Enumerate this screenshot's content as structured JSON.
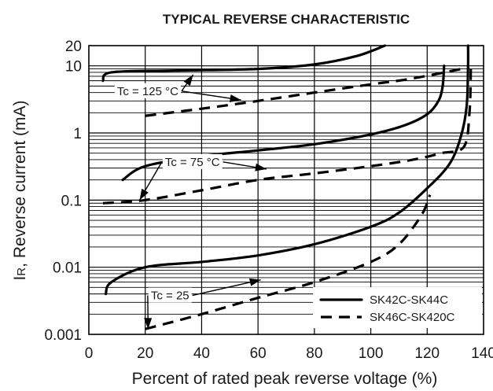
{
  "chart_data": {
    "type": "line",
    "title": "TYPICAL REVERSE CHARACTERISTIC",
    "xlabel": "Percent of rated peak reverse voltage (%)",
    "ylabel": "IR, Reverse current (mA)",
    "ylabel_main": "I",
    "ylabel_sub": "R",
    "ylabel_rest": ", Reverse current (mA)",
    "xlim": [
      0,
      140
    ],
    "ylim": [
      0.001,
      20
    ],
    "yscale": "log",
    "grid": true,
    "x_ticks": [
      0,
      20,
      40,
      60,
      80,
      100,
      120,
      140
    ],
    "x_tick_labels": [
      "0",
      "20",
      "40",
      "60",
      "80",
      "100",
      "120",
      "140"
    ],
    "y_ticks": [
      0.001,
      0.01,
      0.1,
      1,
      10,
      20
    ],
    "y_tick_labels": [
      "0.001",
      "0.01",
      "0.1",
      "1",
      "10",
      "20"
    ],
    "legend_position": "bottom-right",
    "legend": [
      {
        "label": "SK42C-SK44C",
        "style": "solid"
      },
      {
        "label": "SK46C-SK420C",
        "style": "dashed"
      }
    ],
    "annotations": [
      {
        "id": "tc125",
        "text": "Tc = 125 °C",
        "x": 10,
        "y": 4.2,
        "targets": [
          [
            37,
            7.4
          ],
          [
            54,
            3.1
          ]
        ]
      },
      {
        "id": "tc75",
        "text": "Tc = 75 °C",
        "x": 27,
        "y": 0.37,
        "targets": [
          [
            18,
            0.1
          ],
          [
            63,
            0.29
          ]
        ]
      },
      {
        "id": "tc25",
        "text": "Tc = 25",
        "x": 22,
        "y": 0.0038,
        "targets": [
          [
            21,
            0.0012
          ],
          [
            61,
            0.0065
          ]
        ]
      }
    ],
    "series": [
      {
        "name": "SK42C-SK44C",
        "temp": "Tc = 125 °C",
        "style": "solid",
        "points": [
          [
            5,
            6
          ],
          [
            8,
            8
          ],
          [
            30,
            8.5
          ],
          [
            60,
            9
          ],
          [
            80,
            10.5
          ],
          [
            95,
            14
          ],
          [
            105,
            20
          ]
        ]
      },
      {
        "name": "SK46C-SK420C",
        "temp": "Tc = 125 °C",
        "style": "dashed",
        "points": [
          [
            20,
            1.8
          ],
          [
            40,
            2.3
          ],
          [
            60,
            3.0
          ],
          [
            80,
            4.0
          ],
          [
            100,
            5.3
          ],
          [
            115,
            6.5
          ],
          [
            135,
            9.5
          ]
        ]
      },
      {
        "name": "SK42C-SK44C",
        "temp": "Tc = 75 °C",
        "style": "solid",
        "points": [
          [
            12,
            0.2
          ],
          [
            20,
            0.32
          ],
          [
            40,
            0.45
          ],
          [
            60,
            0.55
          ],
          [
            80,
            0.68
          ],
          [
            100,
            0.95
          ],
          [
            112,
            1.3
          ],
          [
            120,
            1.9
          ],
          [
            124,
            3.0
          ],
          [
            125.5,
            5.0
          ],
          [
            126,
            10
          ]
        ]
      },
      {
        "name": "SK46C-SK420C",
        "temp": "Tc = 75 °C",
        "style": "dashed",
        "points": [
          [
            5,
            0.09
          ],
          [
            20,
            0.1
          ],
          [
            40,
            0.14
          ],
          [
            60,
            0.2
          ],
          [
            80,
            0.25
          ],
          [
            100,
            0.32
          ],
          [
            115,
            0.4
          ],
          [
            125,
            0.5
          ],
          [
            133,
            0.62
          ],
          [
            135,
            2
          ],
          [
            135.5,
            10
          ]
        ]
      },
      {
        "name": "SK42C-SK44C",
        "temp": "Tc = 25 °C",
        "style": "solid",
        "points": [
          [
            6,
            0.004
          ],
          [
            8,
            0.006
          ],
          [
            20,
            0.01
          ],
          [
            40,
            0.012
          ],
          [
            60,
            0.015
          ],
          [
            80,
            0.022
          ],
          [
            100,
            0.04
          ],
          [
            110,
            0.065
          ],
          [
            120,
            0.15
          ],
          [
            128,
            0.35
          ],
          [
            132,
            0.9
          ],
          [
            134,
            2.5
          ],
          [
            134.5,
            10
          ],
          [
            134.5,
            20
          ]
        ]
      },
      {
        "name": "SK46C-SK420C",
        "temp": "Tc = 25 °C",
        "style": "dashed",
        "points": [
          [
            20,
            0.0012
          ],
          [
            40,
            0.002
          ],
          [
            60,
            0.0035
          ],
          [
            80,
            0.006
          ],
          [
            100,
            0.012
          ],
          [
            110,
            0.022
          ],
          [
            118,
            0.06
          ],
          [
            121,
            0.12
          ]
        ]
      }
    ]
  }
}
